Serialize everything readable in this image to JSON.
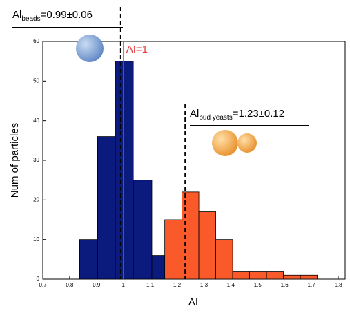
{
  "chart_data": {
    "type": "histogram",
    "x_label": "AI",
    "y_label": "Num of particles",
    "series": [
      {
        "color": "#0b1a7d",
        "bins": [
          0.837,
          0.904,
          0.97,
          1.037,
          1.106,
          1.175
        ],
        "values": [
          10,
          36,
          55,
          25,
          6
        ]
      },
      {
        "color": "#fa5a2a",
        "bins": [
          1.154,
          1.218,
          1.281,
          1.344,
          1.407,
          1.47,
          1.533,
          1.596,
          1.659,
          1.722
        ],
        "values": [
          15,
          22,
          17,
          10,
          2,
          2,
          2,
          1,
          1
        ]
      }
    ],
    "xlim": [
      0.7,
      1.8
    ],
    "xticks": [
      0.7,
      0.8,
      0.9,
      1,
      1.1,
      1.2,
      1.3,
      1.4,
      1.5,
      1.6,
      1.7,
      1.8
    ],
    "ylim": [
      0,
      60
    ],
    "yticks": [
      0,
      10,
      20,
      30,
      40,
      50,
      60
    ],
    "annotations": [
      {
        "text": "Al",
        "subscript": "beads",
        "suffix": "=0.99±0.06",
        "x": 0.99
      },
      {
        "text": "AI=1",
        "x": 1,
        "color": "#e8383d"
      },
      {
        "text": "Al",
        "subscript": "bud yeasts",
        "suffix": "=1.23±0.12",
        "x": 1.23
      }
    ]
  }
}
